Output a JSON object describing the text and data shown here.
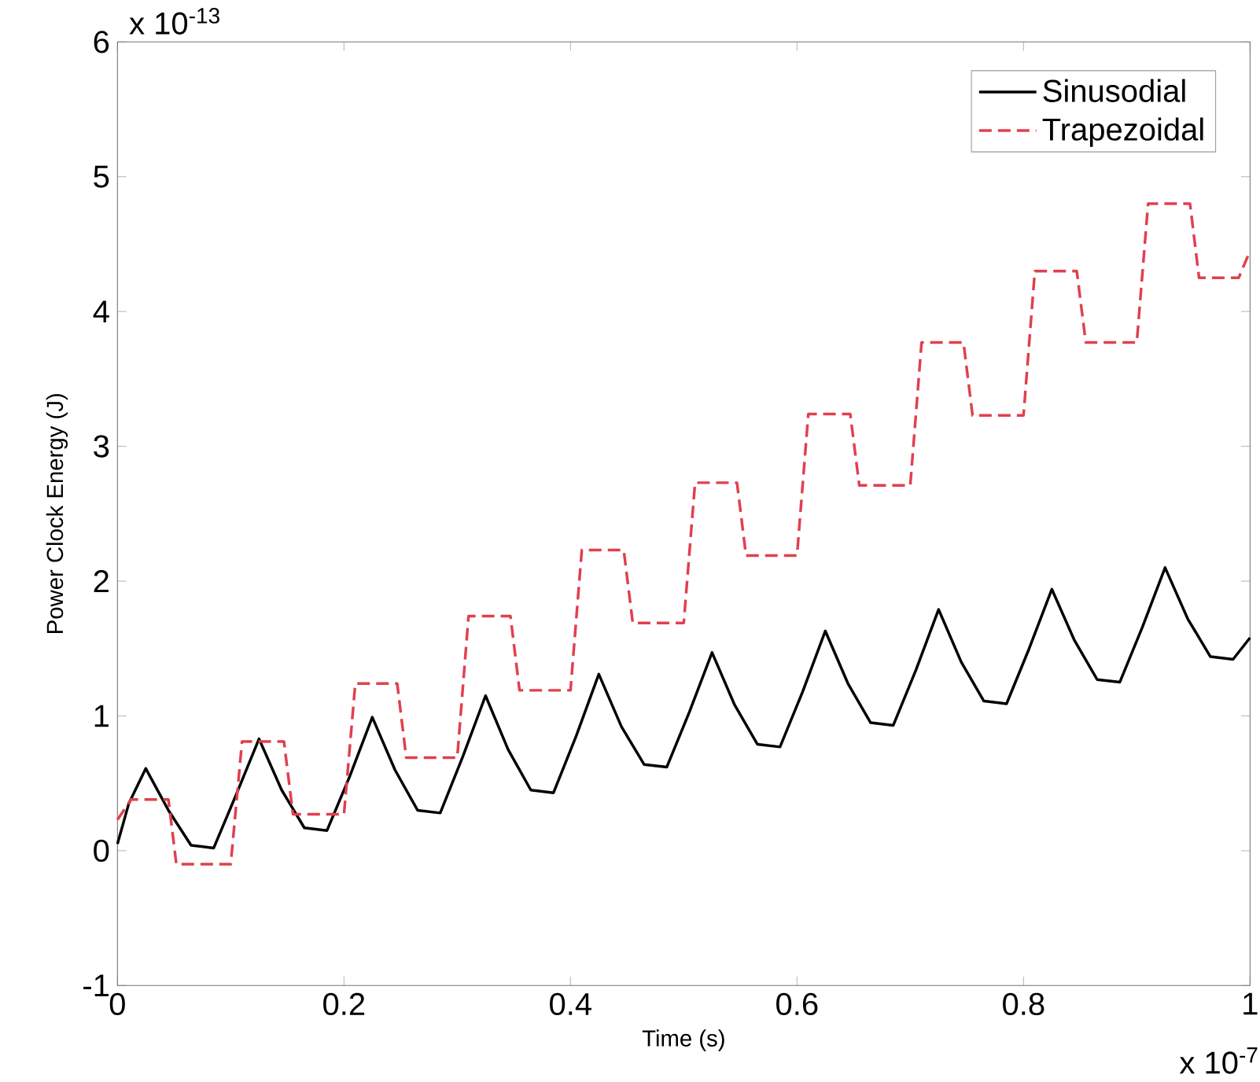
{
  "chart_data": {
    "type": "line",
    "xlabel": "Time (s)",
    "ylabel": "Power Clock Energy (J)",
    "annotations": [
      "x 10$^{-13}$",
      "x 10$^{-7}$"
    ],
    "xlim": [
      0,
      1
    ],
    "ylim": [
      -1,
      6
    ],
    "xticks": [
      0,
      0.2,
      0.4,
      0.6,
      0.8,
      1
    ],
    "yticks": [
      -1,
      0,
      1,
      2,
      3,
      4,
      5,
      6
    ],
    "grid": false,
    "legend": "top right",
    "series": [
      {
        "name": "Sinusodial",
        "color": "#000000",
        "line_style": "solid",
        "x": [
          0,
          0.01,
          0.025,
          0.045,
          0.065,
          0.085,
          0.105,
          0.125,
          0.145,
          0.165,
          0.185,
          0.205,
          0.225,
          0.245,
          0.265,
          0.285,
          0.305,
          0.325,
          0.345,
          0.365,
          0.385,
          0.405,
          0.425,
          0.445,
          0.465,
          0.485,
          0.505,
          0.525,
          0.545,
          0.565,
          0.585,
          0.605,
          0.625,
          0.645,
          0.665,
          0.685,
          0.705,
          0.725,
          0.745,
          0.765,
          0.785,
          0.805,
          0.825,
          0.845,
          0.865,
          0.885,
          0.905,
          0.925,
          0.945,
          0.965,
          0.985,
          1.0
        ],
        "values": [
          0.05,
          0.35,
          0.61,
          0.3,
          0.04,
          0.02,
          0.42,
          0.83,
          0.45,
          0.17,
          0.15,
          0.55,
          0.99,
          0.6,
          0.3,
          0.28,
          0.7,
          1.15,
          0.75,
          0.45,
          0.43,
          0.85,
          1.31,
          0.92,
          0.64,
          0.62,
          1.03,
          1.47,
          1.08,
          0.79,
          0.77,
          1.18,
          1.63,
          1.24,
          0.95,
          0.93,
          1.34,
          1.79,
          1.4,
          1.11,
          1.09,
          1.5,
          1.94,
          1.56,
          1.27,
          1.25,
          1.66,
          2.1,
          1.72,
          1.44,
          1.42,
          1.58
        ]
      },
      {
        "name": "Trapezoidal",
        "color": "#e0404f",
        "line_style": "dashed",
        "x": [
          0,
          0.012,
          0.045,
          0.052,
          0.1,
          0.11,
          0.147,
          0.155,
          0.2,
          0.21,
          0.247,
          0.255,
          0.3,
          0.31,
          0.347,
          0.355,
          0.4,
          0.41,
          0.447,
          0.455,
          0.5,
          0.51,
          0.547,
          0.555,
          0.6,
          0.61,
          0.647,
          0.655,
          0.7,
          0.71,
          0.747,
          0.755,
          0.8,
          0.81,
          0.847,
          0.855,
          0.9,
          0.91,
          0.947,
          0.955,
          0.99,
          1.0
        ],
        "values": [
          0.23,
          0.38,
          0.38,
          -0.1,
          -0.1,
          0.81,
          0.81,
          0.27,
          0.27,
          1.24,
          1.24,
          0.69,
          0.69,
          1.74,
          1.74,
          1.19,
          1.19,
          2.23,
          2.23,
          1.69,
          1.69,
          2.73,
          2.73,
          2.19,
          2.19,
          3.24,
          3.24,
          2.71,
          2.71,
          3.77,
          3.77,
          3.23,
          3.23,
          4.3,
          4.3,
          3.77,
          3.77,
          4.8,
          4.8,
          4.25,
          4.25,
          4.45
        ]
      }
    ]
  }
}
